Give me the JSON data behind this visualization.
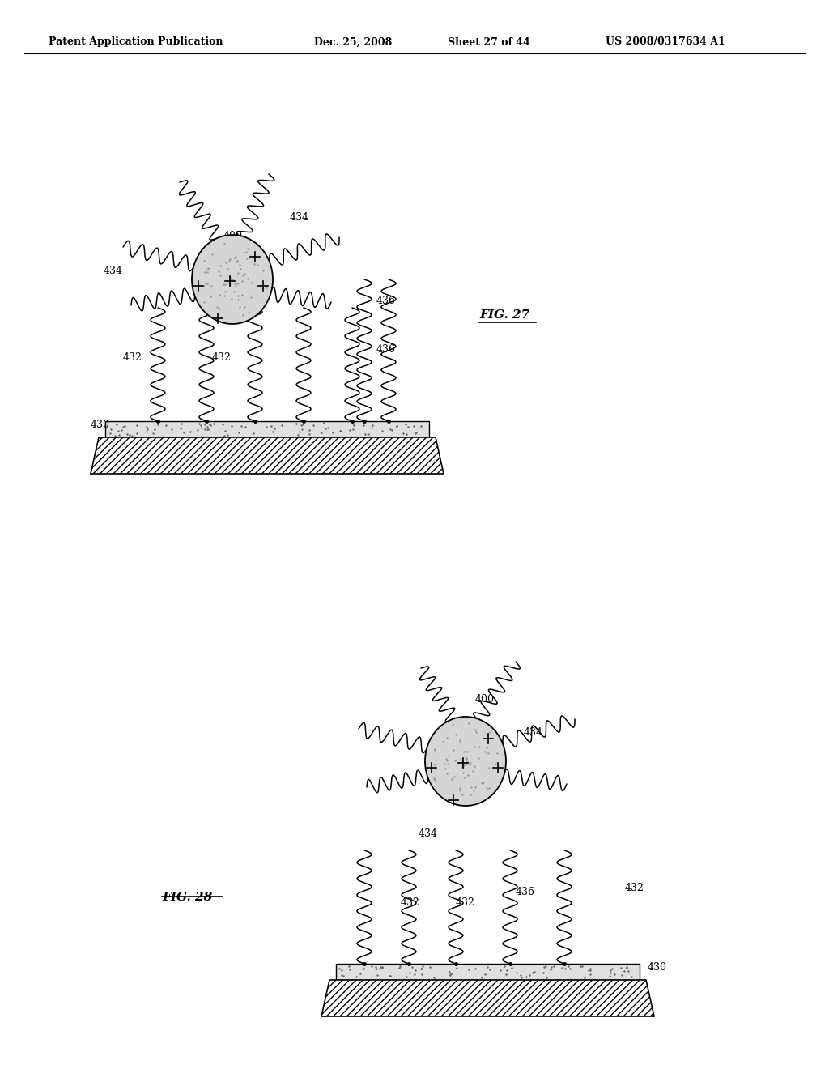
{
  "bg_color": "#ffffff",
  "header_text": "Patent Application Publication",
  "header_date": "Dec. 25, 2008",
  "header_sheet": "Sheet 27 of 44",
  "header_patent": "US 2008/0317634 A1",
  "fig27_label": "FIG. 27",
  "fig28_label": "FIG. 28",
  "label_400": "400",
  "label_434": "434",
  "label_436": "436",
  "label_432": "432",
  "label_430": "430"
}
